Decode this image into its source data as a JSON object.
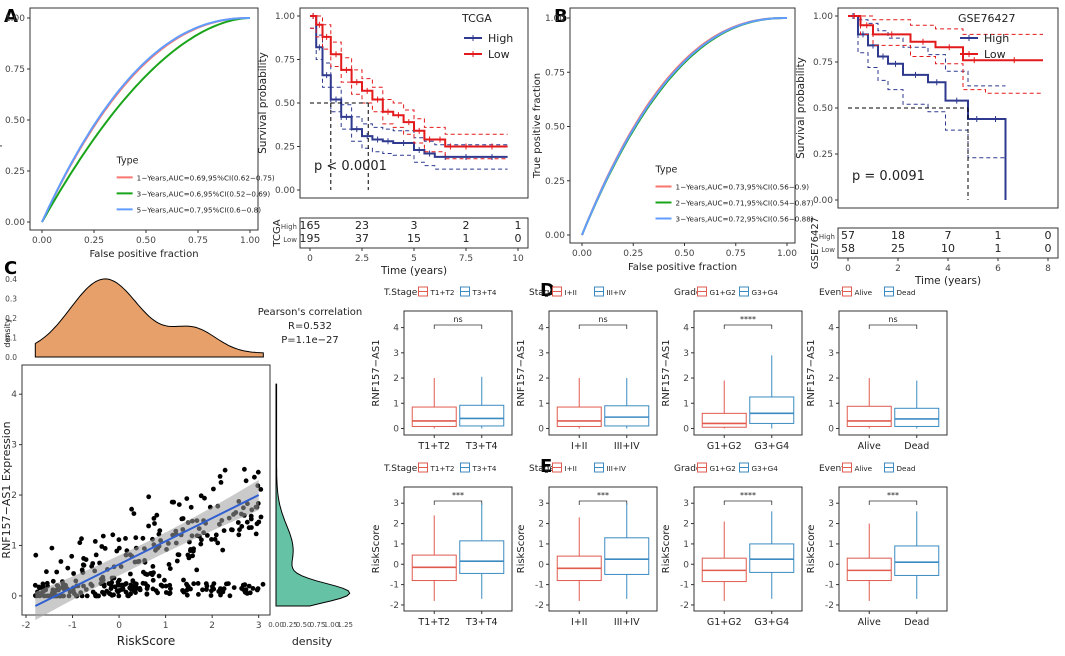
{
  "panel_letters": [
    "A",
    "B",
    "C",
    "D",
    "E"
  ],
  "chart_data": [
    {
      "id": "A-roc",
      "type": "line",
      "title": "",
      "xlabel": "False positive fraction",
      "ylabel": "True positive fraction",
      "xticks": [
        "0.00",
        "0.25",
        "0.50",
        "0.75",
        "1.00"
      ],
      "yticks": [
        "0.00",
        "0.25",
        "0.50",
        "0.75",
        "1.00"
      ],
      "legend_title": "Type",
      "series": [
        {
          "name": "1−Years,AUC=0.69,95%CI(0.62−0.75)",
          "color": "#F8766D",
          "auc": 0.69
        },
        {
          "name": "3−Years,AUC=0.6,95%CI(0.52−0.69)",
          "color": "#1AA41A",
          "auc": 0.6
        },
        {
          "name": "5−Years,AUC=0.7,95%CI(0.6−0.8)",
          "color": "#619CFF",
          "auc": 0.7
        }
      ]
    },
    {
      "id": "A-km",
      "type": "line",
      "cohort": "TCGA",
      "xlabel": "Time (years)",
      "ylabel": "Survival probability",
      "xticks": [
        "0",
        "2.5",
        "5",
        "7.5",
        "10"
      ],
      "yticks": [
        "0.00",
        "0.25",
        "0.50",
        "0.75",
        "1.00"
      ],
      "pvalue": "p < 0.0001",
      "legend": [
        {
          "name": "High",
          "color": "#2F3A8F"
        },
        {
          "name": "Low",
          "color": "#E31A1C"
        }
      ],
      "risk_label": "TCGA",
      "risk_table": [
        {
          "group": "High",
          "counts": [
            "165",
            "23",
            "3",
            "2",
            "1"
          ]
        },
        {
          "group": "Low",
          "counts": [
            "195",
            "37",
            "15",
            "1",
            "0"
          ]
        }
      ],
      "series": [
        {
          "name": "High",
          "x": [
            0,
            0.3,
            0.6,
            1,
            1.5,
            2,
            2.5,
            3,
            3.5,
            4,
            5,
            5.5,
            6,
            7,
            8,
            9.5
          ],
          "y": [
            1,
            0.82,
            0.66,
            0.52,
            0.42,
            0.35,
            0.31,
            0.29,
            0.28,
            0.27,
            0.23,
            0.21,
            0.19,
            0.19,
            0.19,
            0.19
          ]
        },
        {
          "name": "Low",
          "x": [
            0,
            0.3,
            0.6,
            1,
            1.5,
            2,
            2.5,
            3,
            3.5,
            4,
            4.5,
            5,
            5.5,
            6,
            6.5,
            7,
            8,
            9.5
          ],
          "y": [
            1,
            0.95,
            0.88,
            0.78,
            0.69,
            0.62,
            0.57,
            0.52,
            0.45,
            0.43,
            0.39,
            0.34,
            0.29,
            0.29,
            0.25,
            0.25,
            0.25,
            0.25
          ]
        }
      ]
    },
    {
      "id": "B-roc",
      "type": "line",
      "xlabel": "False positive fraction",
      "ylabel": "True positive fraction",
      "xticks": [
        "0.00",
        "0.25",
        "0.50",
        "0.75",
        "1.00"
      ],
      "yticks": [
        "0.00",
        "0.25",
        "0.50",
        "0.75",
        "1.00"
      ],
      "legend_title": "Type",
      "series": [
        {
          "name": "1−Years,AUC=0.73,95%CI(0.56−0.9)",
          "color": "#F8766D",
          "auc": 0.73
        },
        {
          "name": "2−Years,AUC=0.71,95%CI(0.54−0.87)",
          "color": "#1AA41A",
          "auc": 0.71
        },
        {
          "name": "3−Years,AUC=0.72,95%CI(0.56−0.88)",
          "color": "#619CFF",
          "auc": 0.72
        }
      ]
    },
    {
      "id": "B-km",
      "type": "line",
      "cohort": "GSE76427",
      "xlabel": "Time (years)",
      "ylabel": "Survival probability",
      "xticks": [
        "0",
        "2",
        "4",
        "6",
        "8"
      ],
      "yticks": [
        "0.00",
        "0.25",
        "0.50",
        "0.75",
        "1.00"
      ],
      "pvalue": "p = 0.0091",
      "legend": [
        {
          "name": "High",
          "color": "#2F3A8F"
        },
        {
          "name": "Low",
          "color": "#E31A1C"
        }
      ],
      "risk_label": "GSE76427",
      "risk_table": [
        {
          "group": "High",
          "counts": [
            "57",
            "18",
            "7",
            "1",
            "0"
          ]
        },
        {
          "group": "Low",
          "counts": [
            "58",
            "25",
            "10",
            "1",
            "0"
          ]
        }
      ],
      "series": [
        {
          "name": "High",
          "x": [
            0,
            0.4,
            0.8,
            1.2,
            1.6,
            2.2,
            3.2,
            3.9,
            4.8,
            5.5,
            6.3
          ],
          "y": [
            1,
            0.9,
            0.84,
            0.78,
            0.74,
            0.68,
            0.64,
            0.54,
            0.44,
            0.44,
            0
          ],
          "lower": [
            1,
            0.8,
            0.72,
            0.65,
            0.6,
            0.52,
            0.48,
            0.38,
            0.23,
            0.23,
            0.23
          ],
          "upper": [
            1,
            0.98,
            0.96,
            0.92,
            0.88,
            0.83,
            0.79,
            0.7,
            0.62,
            0.62,
            0.62
          ]
        },
        {
          "name": "Low",
          "x": [
            0,
            0.5,
            1,
            2.5,
            3.5,
            4.6,
            5.5,
            7.8
          ],
          "y": [
            1,
            0.95,
            0.9,
            0.86,
            0.83,
            0.76,
            0.76,
            0.76
          ],
          "lower": [
            1,
            0.9,
            0.84,
            0.78,
            0.74,
            0.6,
            0.58,
            0.58
          ],
          "upper": [
            1,
            1,
            0.98,
            0.95,
            0.93,
            0.9,
            0.9,
            0.9
          ]
        }
      ]
    },
    {
      "id": "C-scatter",
      "type": "scatter",
      "xlabel": "RiskScore",
      "ylabel": "RNF157−AS1 Expression",
      "xticks": [
        "-2",
        "-1",
        "0",
        "1",
        "2",
        "3"
      ],
      "yticks": [
        "0",
        "1",
        "2",
        "3",
        "4"
      ],
      "top_density_label": "density",
      "top_density_ticks": [
        "0.0",
        "0.1",
        "0.2",
        "0.3",
        "0.4"
      ],
      "right_density_label": "density",
      "right_density_ticks": [
        "0.00",
        "0.25",
        "0.50",
        "0.75",
        "1.00",
        "1.25"
      ],
      "annotation": [
        "Pearson's correlation",
        "R=0.532",
        "P=1.1e−27"
      ],
      "fit": {
        "x": [
          -1.8,
          3.0
        ],
        "y": [
          -0.2,
          2.0
        ]
      },
      "points_n": 360
    },
    {
      "id": "D-boxplots",
      "type": "box",
      "ylabel": "RNF157−AS1",
      "yticks": [
        "0",
        "1",
        "2",
        "3",
        "4"
      ],
      "panels": [
        {
          "legend_title": "T.Stage",
          "groups": [
            "T1+T2",
            "T3+T4"
          ],
          "sig": "ns",
          "box": [
            [
              0,
              0.08,
              0.3,
              0.85,
              2.0
            ],
            [
              0,
              0.1,
              0.4,
              0.92,
              2.05
            ]
          ]
        },
        {
          "legend_title": "Stage",
          "groups": [
            "I+II",
            "III+IV"
          ],
          "sig": "ns",
          "box": [
            [
              0,
              0.08,
              0.3,
              0.85,
              2.0
            ],
            [
              0,
              0.1,
              0.45,
              0.9,
              2.0
            ]
          ]
        },
        {
          "legend_title": "Grade",
          "groups": [
            "G1+G2",
            "G3+G4"
          ],
          "sig": "****",
          "box": [
            [
              0,
              0.05,
              0.2,
              0.6,
              1.9
            ],
            [
              0,
              0.2,
              0.6,
              1.25,
              2.9
            ]
          ]
        },
        {
          "legend_title": "Event",
          "groups": [
            "Alive",
            "Dead"
          ],
          "sig": "ns",
          "box": [
            [
              0,
              0.08,
              0.3,
              0.88,
              2.0
            ],
            [
              0,
              0.08,
              0.38,
              0.8,
              1.9
            ]
          ]
        }
      ]
    },
    {
      "id": "E-boxplots",
      "type": "box",
      "ylabel": "RiskScore",
      "yticks": [
        "-2",
        "-1",
        "0",
        "1",
        "2",
        "3"
      ],
      "panels": [
        {
          "legend_title": "T.Stage",
          "groups": [
            "T1+T2",
            "T3+T4"
          ],
          "sig": "***",
          "box": [
            [
              -1.8,
              -0.8,
              -0.15,
              0.45,
              2.4
            ],
            [
              -1.7,
              -0.45,
              0.15,
              1.15,
              3.0
            ]
          ]
        },
        {
          "legend_title": "Stage",
          "groups": [
            "I+II",
            "III+IV"
          ],
          "sig": "***",
          "box": [
            [
              -1.8,
              -0.8,
              -0.2,
              0.4,
              2.3
            ],
            [
              -1.7,
              -0.5,
              0.25,
              1.3,
              3.0
            ]
          ]
        },
        {
          "legend_title": "Grade",
          "groups": [
            "G1+G2",
            "G3+G4"
          ],
          "sig": "****",
          "box": [
            [
              -1.8,
              -0.85,
              -0.3,
              0.3,
              2.1
            ],
            [
              -1.7,
              -0.4,
              0.25,
              1.0,
              2.6
            ]
          ]
        },
        {
          "legend_title": "Event",
          "groups": [
            "Alive",
            "Dead"
          ],
          "sig": "***",
          "box": [
            [
              -1.8,
              -0.8,
              -0.3,
              0.3,
              2.0
            ],
            [
              -1.7,
              -0.55,
              0.1,
              0.9,
              2.6
            ]
          ]
        }
      ]
    }
  ],
  "colors": {
    "red": "#E31A1C",
    "navy": "#2F3A8F",
    "box_red": "#E05A4E",
    "box_blue": "#3B8BC2",
    "density_top": "#E8A06A",
    "density_right": "#66C2A5",
    "fit": "#2F5FD0"
  }
}
